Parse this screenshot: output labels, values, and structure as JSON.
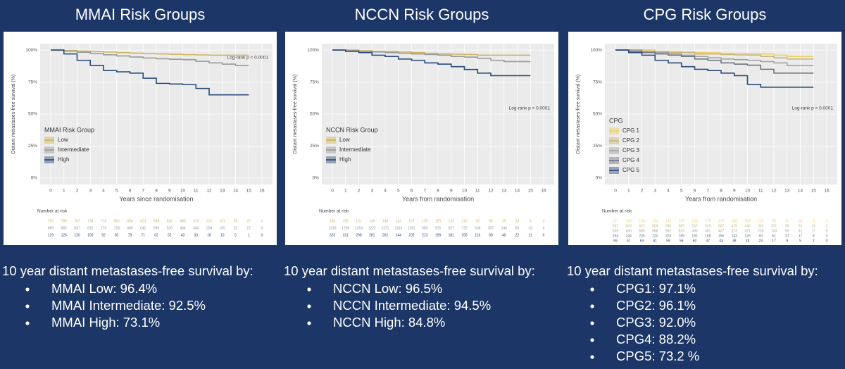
{
  "chart_data": [
    {
      "type": "line",
      "title": "MMAI Risk Groups",
      "xlabel": "Years since randomisation",
      "ylabel": "Distant metastases-free survival (%)",
      "x": [
        0,
        1,
        2,
        3,
        4,
        5,
        6,
        7,
        8,
        9,
        10,
        11,
        12,
        13,
        14,
        15
      ],
      "xlim": [
        -0.8,
        16.8
      ],
      "xticks": [
        0,
        1,
        2,
        3,
        4,
        5,
        6,
        7,
        8,
        9,
        10,
        11,
        12,
        13,
        14,
        15,
        16
      ],
      "ylim": [
        -5,
        105
      ],
      "yticks": [
        {
          "value": 0,
          "label": "0%"
        },
        {
          "value": 25,
          "label": "25%"
        },
        {
          "value": 50,
          "label": "50%"
        },
        {
          "value": 75,
          "label": "75%"
        },
        {
          "value": 100,
          "label": "100%"
        }
      ],
      "grid": true,
      "legend_title": "MMAI Risk Group",
      "annotation": "Log-rank p < 0.0001",
      "at_risk_title": "Number at risk",
      "series": [
        {
          "name": "Low",
          "color": "#cdb45e",
          "values": [
            100,
            99.6,
            99.2,
            98.8,
            98.4,
            98,
            97.6,
            97.2,
            97,
            96.7,
            96.4,
            96.2,
            96,
            96,
            96,
            96
          ],
          "at_risk": [
            793,
            789,
            767,
            734,
            714,
            692,
            664,
            623,
            584,
            542,
            498,
            370,
            212,
            101,
            59,
            22,
            0
          ]
        },
        {
          "name": "Intermediate",
          "color": "#9a9a9a",
          "values": [
            100,
            99.2,
            98.3,
            97.3,
            96.3,
            95.4,
            94.6,
            93.8,
            93.2,
            92.8,
            92.5,
            91.2,
            90,
            89,
            88,
            88
          ],
          "at_risk": [
            889,
            865,
            837,
            815,
            773,
            728,
            689,
            642,
            599,
            539,
            484,
            343,
            204,
            105,
            52,
            27,
            0
          ]
        },
        {
          "name": "High",
          "color": "#2b4a7a",
          "values": [
            100,
            97,
            92,
            88,
            84,
            83,
            82,
            78,
            74,
            73.5,
            73.1,
            70,
            65,
            65,
            65,
            65
          ],
          "at_risk": [
            129,
            126,
            120,
            106,
            92,
            82,
            79,
            71,
            62,
            52,
            43,
            33,
            18,
            10,
            5,
            1,
            0
          ]
        }
      ]
    },
    {
      "type": "line",
      "title": "NCCN Risk Groups",
      "xlabel": "Years from randomisation",
      "ylabel": "Distant metastases-free survival (%)",
      "x": [
        0,
        1,
        2,
        3,
        4,
        5,
        6,
        7,
        8,
        9,
        10,
        11,
        12,
        13,
        14,
        15
      ],
      "xlim": [
        -0.8,
        16.8
      ],
      "xticks": [
        0,
        1,
        2,
        3,
        4,
        5,
        6,
        7,
        8,
        9,
        10,
        11,
        12,
        13,
        14,
        15,
        16
      ],
      "ylim": [
        -5,
        105
      ],
      "yticks": [
        {
          "value": 0,
          "label": "0%"
        },
        {
          "value": 25,
          "label": "25%"
        },
        {
          "value": 50,
          "label": "50%"
        },
        {
          "value": 75,
          "label": "75%"
        },
        {
          "value": 100,
          "label": "100%"
        }
      ],
      "grid": true,
      "legend_title": "NCCN Risk Group",
      "annotation": "Log-rank p < 0.0001",
      "at_risk_title": "Number at risk",
      "series": [
        {
          "name": "Low",
          "color": "#cdb45e",
          "values": [
            100,
            100,
            99.5,
            99,
            99,
            98.5,
            98,
            97.5,
            97,
            96.8,
            96.5,
            96,
            96,
            96,
            96,
            96
          ],
          "at_risk": [
            154,
            152,
            151,
            149,
            146,
            143,
            137,
            135,
            129,
            123,
            116,
            93,
            58,
            35,
            24,
            6,
            0
          ]
        },
        {
          "name": "Intermediate",
          "color": "#9a9a9a",
          "values": [
            100,
            99.5,
            99,
            98.5,
            98,
            97.5,
            97,
            96.5,
            96,
            95,
            94.5,
            93.5,
            92,
            91,
            91,
            91
          ],
          "at_risk": [
            1318,
            1296,
            1263,
            1222,
            1171,
            1103,
            1051,
            986,
            915,
            827,
            729,
            538,
            307,
            148,
            80,
            33,
            6
          ]
        },
        {
          "name": "High",
          "color": "#2b4a7a",
          "values": [
            100,
            99,
            98,
            96,
            95,
            93,
            92,
            90,
            89,
            87,
            84.8,
            82,
            80,
            80,
            80,
            80
          ],
          "at_risk": [
            323,
            311,
            298,
            281,
            262,
            244,
            232,
            213,
            199,
            181,
            159,
            116,
            68,
            40,
            22,
            11,
            0
          ]
        }
      ]
    },
    {
      "type": "line",
      "title": "CPG Risk Groups",
      "xlabel": "Years from randomisation",
      "ylabel": "Distant metastases-free survival (%)",
      "x": [
        0,
        1,
        2,
        3,
        4,
        5,
        6,
        7,
        8,
        9,
        10,
        11,
        12,
        13,
        14,
        15
      ],
      "xlim": [
        -0.8,
        16.8
      ],
      "xticks": [
        0,
        1,
        2,
        3,
        4,
        5,
        6,
        7,
        8,
        9,
        10,
        11,
        12,
        13,
        14,
        15,
        16
      ],
      "ylim": [
        -5,
        105
      ],
      "yticks": [
        {
          "value": 0,
          "label": "0%"
        },
        {
          "value": 25,
          "label": "25%"
        },
        {
          "value": 50,
          "label": "50%"
        },
        {
          "value": 75,
          "label": "75%"
        },
        {
          "value": 100,
          "label": "100%"
        }
      ],
      "grid": true,
      "legend_title": "CPG",
      "annotation": "Log-rank p < 0.0001",
      "at_risk_title": "Number at risk",
      "series": [
        {
          "name": "CPG 1",
          "color": "#f0d060",
          "values": [
            100,
            100,
            100,
            99,
            99,
            98.5,
            98,
            97.8,
            97.5,
            97.2,
            97.1,
            97,
            96,
            95,
            95,
            95
          ],
          "at_risk": [
            197,
            196,
            193,
            192,
            190,
            187,
            183,
            179,
            173,
            168,
            163,
            133,
            90,
            51,
            30,
            11,
            2
          ]
        },
        {
          "name": "CPG 2",
          "color": "#c8b67a",
          "values": [
            100,
            100,
            99,
            99,
            98,
            98,
            97,
            97,
            96.5,
            96.2,
            96.1,
            95,
            94,
            93,
            93,
            93
          ],
          "at_risk": [
            647,
            633,
            622,
            604,
            586,
            565,
            547,
            526,
            502,
            475,
            445,
            333,
            201,
            98,
            52,
            18,
            2
          ]
        },
        {
          "name": "CPG 3",
          "color": "#a2a2a2",
          "values": [
            100,
            100,
            99,
            98,
            97,
            96,
            95,
            94,
            93,
            92.5,
            92,
            91,
            90,
            88,
            88,
            88
          ],
          "at_risk": [
            639,
            630,
            609,
            588,
            561,
            523,
            496,
            461,
            427,
            373,
            321,
            228,
            133,
            59,
            31,
            17,
            0
          ]
        },
        {
          "name": "CPG 4",
          "color": "#6f7480",
          "values": [
            100,
            99,
            98,
            97,
            96,
            95,
            93,
            92,
            90,
            89,
            88.2,
            85,
            82,
            82,
            82,
            82
          ],
          "at_risk": [
            254,
            244,
            235,
            220,
            203,
            189,
            182,
            168,
            156,
            143,
            126,
            93,
            51,
            31,
            17,
            8,
            0
          ]
        },
        {
          "name": "CPG 5",
          "color": "#2b4a7a",
          "values": [
            100,
            98,
            96,
            92,
            90,
            87,
            85,
            84,
            82,
            80,
            73.2,
            71,
            71,
            71,
            71,
            71
          ],
          "at_risk": [
            69,
            67,
            63,
            61,
            59,
            55,
            50,
            47,
            43,
            38,
            33,
            23,
            17,
            9,
            5,
            2,
            0
          ]
        }
      ]
    }
  ],
  "summaries": [
    {
      "heading": "10 year distant metastases-free survival by:",
      "items": [
        "MMAI Low: 96.4%",
        "MMAI Intermediate: 92.5%",
        "MMAI High: 73.1%"
      ]
    },
    {
      "heading": "10 year distant metastases-free survival by:",
      "items": [
        "NCCN Low: 96.5%",
        "NCCN Intermediate: 94.5%",
        "NCCN High: 84.8%"
      ]
    },
    {
      "heading": "10 year distant metastases-free survival by:",
      "items": [
        "CPG1: 97.1%",
        "CPG2: 96.1%",
        "CPG3: 92.0%",
        "CPG4: 88.2%",
        "CPG5: 73.2 %"
      ]
    }
  ]
}
